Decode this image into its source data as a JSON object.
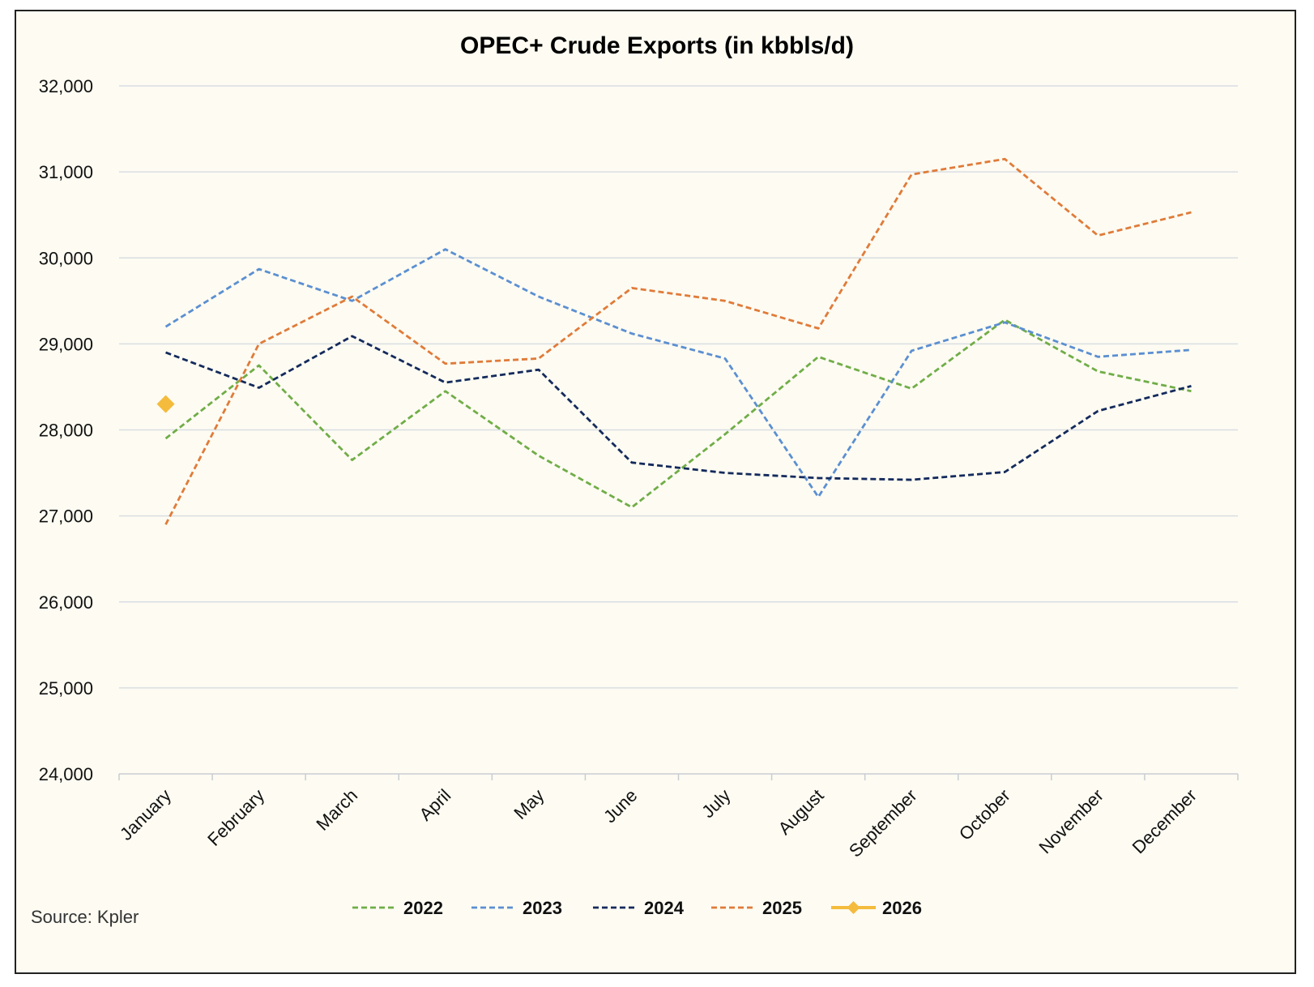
{
  "chart_data": {
    "type": "line",
    "title": "OPEC+ Crude Exports (in kbbls/d)",
    "xlabel": "",
    "ylabel": "",
    "ylim": [
      24000,
      32000
    ],
    "yticks": [
      24000,
      25000,
      26000,
      27000,
      28000,
      29000,
      30000,
      31000,
      32000
    ],
    "ytick_labels": [
      "24,000",
      "25,000",
      "26,000",
      "27,000",
      "28,000",
      "29,000",
      "30,000",
      "31,000",
      "32,000"
    ],
    "categories": [
      "January",
      "February",
      "March",
      "April",
      "May",
      "June",
      "July",
      "August",
      "September",
      "October",
      "November",
      "December"
    ],
    "grid": true,
    "legend_position": "bottom",
    "series": [
      {
        "name": "2022",
        "color": "#70ad47",
        "style": "dashed",
        "values": [
          27900,
          28750,
          27650,
          28450,
          27700,
          27100,
          27950,
          28850,
          28480,
          29280,
          28680,
          28450
        ]
      },
      {
        "name": "2023",
        "color": "#5b8fd1",
        "style": "dashed",
        "values": [
          29200,
          29870,
          29500,
          30100,
          29550,
          29120,
          28830,
          27220,
          28920,
          29250,
          28850,
          28930
        ]
      },
      {
        "name": "2024",
        "color": "#142a5c",
        "style": "dashed",
        "values": [
          28900,
          28490,
          29090,
          28550,
          28700,
          27620,
          27500,
          27440,
          27420,
          27510,
          28220,
          28510
        ]
      },
      {
        "name": "2025",
        "color": "#e07b39",
        "style": "dashed",
        "values": [
          26900,
          29000,
          29550,
          28770,
          28830,
          29650,
          29500,
          29180,
          30970,
          31150,
          30260,
          30530
        ]
      },
      {
        "name": "2026",
        "color": "#f4bb3c",
        "style": "solid-marker",
        "values": [
          28300,
          null,
          null,
          null,
          null,
          null,
          null,
          null,
          null,
          null,
          null,
          null
        ]
      }
    ]
  },
  "source": "Source: Kpler"
}
